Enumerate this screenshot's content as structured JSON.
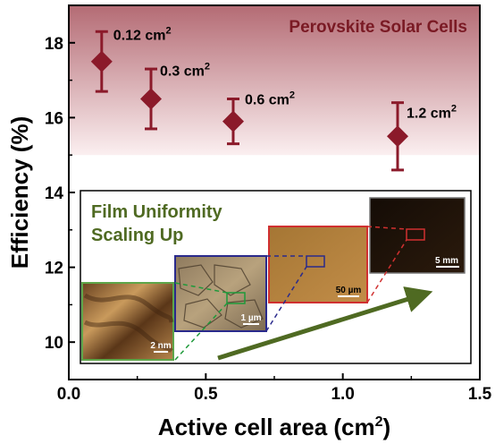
{
  "chart_data": {
    "type": "scatter",
    "xlabel": "Active cell area (cm",
    "xlabel_sup": "2",
    "xlabel_end": ")",
    "ylabel": "Efficiency (%)",
    "xlim": [
      0.0,
      1.5
    ],
    "ylim": [
      9.0,
      19.0
    ],
    "x_ticks": [
      {
        "v": 0.0,
        "label": "0.0"
      },
      {
        "v": 0.5,
        "label": "0.5"
      },
      {
        "v": 1.0,
        "label": "1.0"
      },
      {
        "v": 1.5,
        "label": "1.5"
      }
    ],
    "y_ticks": [
      {
        "v": 10,
        "label": "10"
      },
      {
        "v": 12,
        "label": "12"
      },
      {
        "v": 14,
        "label": "14"
      },
      {
        "v": 16,
        "label": "16"
      },
      {
        "v": 18,
        "label": "18"
      }
    ],
    "points": [
      {
        "x": 0.12,
        "y": 17.5,
        "err_low": 16.7,
        "err_high": 18.3,
        "label": "0.12 cm",
        "sup": "2"
      },
      {
        "x": 0.3,
        "y": 16.5,
        "err_low": 15.7,
        "err_high": 17.3,
        "label": "0.3 cm",
        "sup": "2"
      },
      {
        "x": 0.6,
        "y": 15.9,
        "err_low": 15.3,
        "err_high": 16.5,
        "label": "0.6 cm",
        "sup": "2"
      },
      {
        "x": 1.2,
        "y": 15.5,
        "err_low": 14.6,
        "err_high": 16.4,
        "label": "1.2 cm",
        "sup": "2"
      }
    ],
    "highlight_band": {
      "y_from": 15.0,
      "y_to": 19.0
    },
    "banner": "Perovskite Solar Cells",
    "inset": {
      "title_line1": "Film Uniformity",
      "title_line2": "Scaling Up",
      "images": [
        {
          "scale": "2 nm"
        },
        {
          "scale": "1 µm"
        },
        {
          "scale": "50 µm"
        },
        {
          "scale": "5 mm"
        }
      ]
    },
    "colors": {
      "marker": "#8b1a2a",
      "band_top": "#b56d76",
      "inset_green": "#4f6a22"
    }
  }
}
